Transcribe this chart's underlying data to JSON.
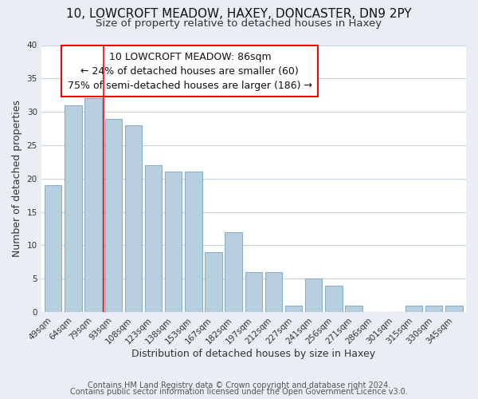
{
  "title": "10, LOWCROFT MEADOW, HAXEY, DONCASTER, DN9 2PY",
  "subtitle": "Size of property relative to detached houses in Haxey",
  "xlabel": "Distribution of detached houses by size in Haxey",
  "ylabel": "Number of detached properties",
  "bar_color": "#b8cfe0",
  "bar_edge_color": "#8aafc8",
  "background_color": "#e8eef4",
  "plot_bg_color": "#ffffff",
  "grid_color": "#c8d4de",
  "categories": [
    "49sqm",
    "64sqm",
    "79sqm",
    "93sqm",
    "108sqm",
    "123sqm",
    "138sqm",
    "153sqm",
    "167sqm",
    "182sqm",
    "197sqm",
    "212sqm",
    "227sqm",
    "241sqm",
    "256sqm",
    "271sqm",
    "286sqm",
    "301sqm",
    "315sqm",
    "330sqm",
    "345sqm"
  ],
  "values": [
    19,
    31,
    32,
    29,
    28,
    22,
    21,
    21,
    9,
    12,
    6,
    6,
    1,
    5,
    4,
    1,
    0,
    0,
    1,
    1,
    1
  ],
  "ylim": [
    0,
    40
  ],
  "yticks": [
    0,
    5,
    10,
    15,
    20,
    25,
    30,
    35,
    40
  ],
  "red_line_x": 2.5,
  "annotation_line1": "10 LOWCROFT MEADOW: 86sqm",
  "annotation_line2": "← 24% of detached houses are smaller (60)",
  "annotation_line3": "75% of semi-detached houses are larger (186) →",
  "footer_line1": "Contains HM Land Registry data © Crown copyright and database right 2024.",
  "footer_line2": "Contains public sector information licensed under the Open Government Licence v3.0.",
  "title_fontsize": 11,
  "subtitle_fontsize": 9.5,
  "axis_label_fontsize": 9,
  "tick_fontsize": 7.5,
  "annotation_fontsize": 9,
  "footer_fontsize": 7
}
